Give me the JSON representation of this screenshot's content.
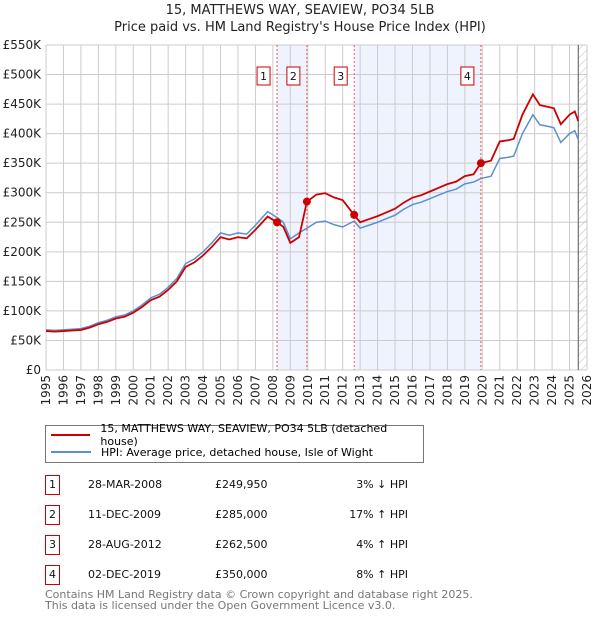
{
  "title": "15, MATTHEWS WAY, SEAVIEW, PO34 5LB",
  "subtitle": "Price paid vs. HM Land Registry's House Price Index (HPI)",
  "chart_data": {
    "type": "line",
    "xlim": [
      1995,
      2026
    ],
    "ylim": [
      0,
      550000
    ],
    "yticks": [
      0,
      50000,
      100000,
      150000,
      200000,
      250000,
      300000,
      350000,
      400000,
      450000,
      500000,
      550000
    ],
    "ytick_labels": [
      "£0",
      "£50K",
      "£100K",
      "£150K",
      "£200K",
      "£250K",
      "£300K",
      "£350K",
      "£400K",
      "£450K",
      "£500K",
      "£550K"
    ],
    "xticks": [
      "1995",
      "1996",
      "1997",
      "1998",
      "1999",
      "2000",
      "2001",
      "2002",
      "2003",
      "2004",
      "2005",
      "2006",
      "2007",
      "2008",
      "2009",
      "2010",
      "2011",
      "2012",
      "2013",
      "2014",
      "2015",
      "2016",
      "2017",
      "2018",
      "2019",
      "2020",
      "2021",
      "2022",
      "2023",
      "2024",
      "2025",
      "2026"
    ],
    "hpi_series": {
      "name": "HPI: Average price, detached house, Isle of Wight",
      "color": "#5b8fd4",
      "x": [
        1995,
        1995.5,
        1996,
        1996.5,
        1997,
        1997.5,
        1998,
        1998.5,
        1999,
        1999.5,
        2000,
        2000.5,
        2001,
        2001.5,
        2002,
        2002.5,
        2003,
        2003.5,
        2004,
        2004.5,
        2005,
        2005.5,
        2006,
        2006.5,
        2007,
        2007.7,
        2008.24,
        2008.6,
        2009.0,
        2009.5,
        2009.95,
        2010.5,
        2011,
        2011.5,
        2012,
        2012.66,
        2013,
        2013.5,
        2014,
        2014.5,
        2015,
        2015.5,
        2016,
        2016.5,
        2017,
        2017.5,
        2018,
        2018.5,
        2019,
        2019.5,
        2019.92,
        2020.5,
        2021,
        2021.5,
        2021.8,
        2022.3,
        2022.9,
        2023.3,
        2023.8,
        2024.1,
        2024.5,
        2025.0,
        2025.3,
        2025.5
      ],
      "y": [
        68000,
        67000,
        68000,
        69000,
        70000,
        74000,
        80000,
        84000,
        90000,
        93000,
        100000,
        110000,
        122000,
        128000,
        140000,
        155000,
        180000,
        188000,
        200000,
        215000,
        232000,
        228000,
        232000,
        230000,
        245000,
        268000,
        258000,
        250000,
        222000,
        232000,
        240000,
        250000,
        252000,
        246000,
        242000,
        252000,
        240000,
        245000,
        250000,
        256000,
        262000,
        272000,
        280000,
        284000,
        290000,
        296000,
        302000,
        306000,
        315000,
        318000,
        324000,
        328000,
        358000,
        360000,
        362000,
        400000,
        432000,
        415000,
        412000,
        410000,
        385000,
        400000,
        405000,
        390000
      ]
    },
    "price_series": {
      "name": "15, MATTHEWS WAY, SEAVIEW, PO34 5LB (detached house)",
      "color": "#cc0000"
    },
    "sales": [
      {
        "n": "1",
        "x": 2008.24,
        "date": "28-MAR-2008",
        "price": 249950,
        "price_label": "£249,950",
        "hpi": "3% ↓ HPI"
      },
      {
        "n": "2",
        "x": 2009.95,
        "date": "11-DEC-2009",
        "price": 285000,
        "price_label": "£285,000",
        "hpi": "17% ↑ HPI"
      },
      {
        "n": "3",
        "x": 2012.66,
        "date": "28-AUG-2012",
        "price": 262500,
        "price_label": "£262,500",
        "hpi": "4% ↑ HPI"
      },
      {
        "n": "4",
        "x": 2019.92,
        "date": "02-DEC-2019",
        "price": 350000,
        "price_label": "£350,000",
        "hpi": "8% ↑ HPI"
      }
    ],
    "forecast_from": 2025.5
  },
  "footer": [
    "Contains HM Land Registry data © Crown copyright and database right 2025.",
    "This data is licensed under the Open Government Licence v3.0."
  ]
}
